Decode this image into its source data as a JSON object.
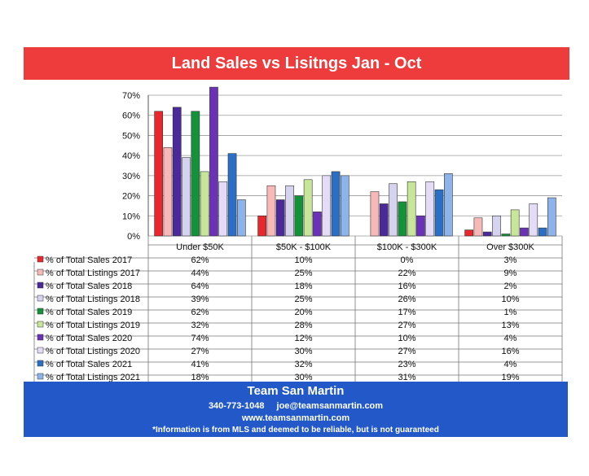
{
  "chart_data": {
    "type": "bar",
    "title": "Land Sales vs Lisitngs Jan - Oct",
    "categories": [
      "Under $50K",
      "$50K - $100K",
      "$100K - $300K",
      "Over $300K"
    ],
    "ylim": [
      0,
      70
    ],
    "yticks": [
      "0%",
      "10%",
      "20%",
      "30%",
      "40%",
      "50%",
      "60%",
      "70%"
    ],
    "grid": true,
    "series": [
      {
        "name": "% of Total Sales 2017",
        "color": "#e8282d",
        "values": [
          62,
          10,
          0,
          3
        ],
        "labels": [
          "62%",
          "10%",
          "0%",
          "3%"
        ]
      },
      {
        "name": "% of Total Listings 2017",
        "color": "#f7b9b7",
        "values": [
          44,
          25,
          22,
          9
        ],
        "labels": [
          "44%",
          "25%",
          "22%",
          "9%"
        ]
      },
      {
        "name": "% of Total Sales 2018",
        "color": "#4a2a9a",
        "values": [
          64,
          18,
          16,
          2
        ],
        "labels": [
          "64%",
          "18%",
          "16%",
          "2%"
        ]
      },
      {
        "name": "% of Total Listings 2018",
        "color": "#d6d3f1",
        "values": [
          39,
          25,
          26,
          10
        ],
        "labels": [
          "39%",
          "25%",
          "26%",
          "10%"
        ]
      },
      {
        "name": "% of Total Sales 2019",
        "color": "#14923a",
        "values": [
          62,
          20,
          17,
          1
        ],
        "labels": [
          "62%",
          "20%",
          "17%",
          "1%"
        ]
      },
      {
        "name": "% of Total Listings 2019",
        "color": "#c7e69a",
        "values": [
          32,
          28,
          27,
          13
        ],
        "labels": [
          "32%",
          "28%",
          "27%",
          "13%"
        ]
      },
      {
        "name": "% of Total Sales 2020",
        "color": "#6b32b8",
        "values": [
          74,
          12,
          10,
          4
        ],
        "labels": [
          "74%",
          "12%",
          "10%",
          "4%"
        ]
      },
      {
        "name": "% of Total Listings 2020",
        "color": "#e4dcf6",
        "values": [
          27,
          30,
          27,
          16
        ],
        "labels": [
          "27%",
          "30%",
          "27%",
          "16%"
        ]
      },
      {
        "name": "% of Total Sales 2021",
        "color": "#2a6fc3",
        "values": [
          41,
          32,
          23,
          4
        ],
        "labels": [
          "41%",
          "32%",
          "23%",
          "4%"
        ]
      },
      {
        "name": "% of Total Listings 2021",
        "color": "#8db4ea",
        "values": [
          18,
          30,
          31,
          19
        ],
        "labels": [
          "18%",
          "30%",
          "31%",
          "19%"
        ]
      }
    ]
  },
  "footer": {
    "team": "Team San Martin",
    "phone": "340-773-1048",
    "email": "joe@teamsanmartin.com",
    "website": "www.teamsanmartin.com",
    "disclaimer": "*Information is from MLS and deemed to be reliable, but is not guaranteed"
  }
}
